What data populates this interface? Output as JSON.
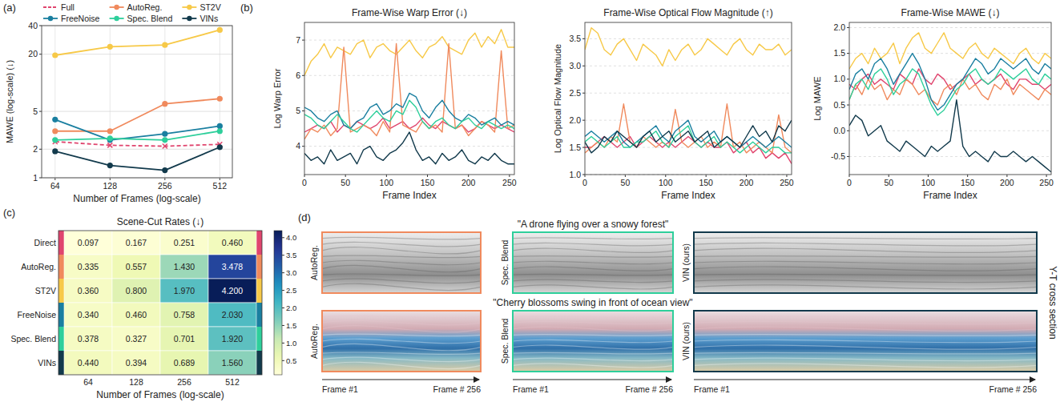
{
  "panel_labels": [
    "(a)",
    "(b)",
    "(c)",
    "(d)"
  ],
  "chart_data": [
    {
      "type": "line",
      "log": true,
      "grid": true,
      "legend": "top",
      "x_label": "Number of Frames (log-scale)",
      "y_label": "MAWE (log-scale) (↓)",
      "x": [
        64,
        128,
        256,
        512
      ],
      "xlim": [
        54,
        600
      ],
      "xticks": [
        64,
        128,
        256,
        512
      ],
      "ylim": [
        1,
        40
      ],
      "yticks": [
        1,
        2,
        5,
        20,
        40
      ],
      "series": [
        {
          "name": "Full",
          "color": "#e0456e",
          "marker": "x",
          "line_style": "dashed",
          "values": [
            2.4,
            2.2,
            2.15,
            2.25
          ]
        },
        {
          "name": "AutoReg.",
          "color": "#f08a5d",
          "marker": "circle",
          "line_style": "solid",
          "values": [
            3.1,
            3.1,
            6.0,
            6.8
          ]
        },
        {
          "name": "ST2V",
          "color": "#f7c948",
          "marker": "circle",
          "line_style": "solid",
          "values": [
            19.5,
            24,
            25,
            36
          ]
        },
        {
          "name": "FreeNoise",
          "color": "#1a7fa0",
          "marker": "circle",
          "line_style": "solid",
          "values": [
            4.1,
            2.5,
            2.9,
            3.5
          ]
        },
        {
          "name": "Spec. Blend",
          "color": "#2ecf9b",
          "marker": "circle",
          "line_style": "solid",
          "values": [
            2.5,
            2.6,
            2.5,
            3.1
          ]
        },
        {
          "name": "VINs",
          "color": "#123a4c",
          "marker": "circle",
          "line_style": "solid",
          "values": [
            1.9,
            1.35,
            1.2,
            2.1
          ]
        }
      ]
    },
    {
      "type": "line",
      "grid": "y",
      "title": "Frame-Wise Warp Error (↓)",
      "x_label": "Frame Index",
      "y_label": "Log Warp Error",
      "x": [
        0,
        8,
        16,
        24,
        32,
        40,
        48,
        56,
        64,
        72,
        80,
        88,
        96,
        104,
        112,
        120,
        128,
        136,
        144,
        152,
        160,
        168,
        176,
        184,
        192,
        200,
        208,
        216,
        224,
        232,
        240,
        248,
        256
      ],
      "xlim": [
        0,
        256
      ],
      "xticks": [
        0,
        50,
        100,
        150,
        200,
        250
      ],
      "ylim": [
        3.2,
        7.5
      ],
      "yticks": [
        4,
        5,
        6,
        7
      ],
      "series": [
        {
          "color": "#f7c948",
          "values": [
            6.0,
            6.4,
            6.6,
            6.9,
            6.5,
            6.8,
            6.7,
            6.6,
            6.9,
            7.0,
            6.5,
            6.8,
            6.9,
            6.7,
            6.6,
            6.8,
            7.0,
            6.7,
            6.5,
            6.8,
            6.9,
            7.1,
            6.8,
            6.7,
            6.6,
            7.0,
            7.2,
            6.8,
            7.1,
            6.9,
            7.3,
            6.8,
            6.8
          ]
        },
        {
          "color": "#e0456e",
          "values": [
            4.4,
            4.5,
            4.6,
            4.5,
            4.7,
            4.4,
            4.6,
            4.5,
            4.7,
            4.6,
            4.5,
            4.6,
            4.8,
            4.5,
            4.6,
            4.7,
            4.5,
            4.6,
            4.8,
            4.6,
            4.5,
            4.7,
            4.6,
            4.5,
            4.6,
            4.4,
            4.5,
            4.7,
            4.6,
            4.5,
            4.6,
            4.5,
            4.4
          ]
        },
        {
          "color": "#f08a5d",
          "values": [
            4.2,
            4.5,
            4.4,
            4.6,
            4.3,
            4.5,
            6.8,
            4.4,
            4.5,
            4.6,
            4.5,
            4.3,
            4.7,
            4.4,
            6.9,
            4.6,
            4.5,
            4.4,
            4.7,
            4.5,
            4.6,
            4.4,
            6.9,
            4.5,
            4.6,
            4.3,
            4.5,
            4.7,
            4.6,
            4.4,
            6.7,
            4.5,
            4.6
          ]
        },
        {
          "color": "#1a7fa0",
          "values": [
            5.1,
            5.0,
            4.8,
            4.7,
            4.9,
            5.0,
            4.6,
            4.5,
            4.7,
            4.8,
            5.1,
            5.2,
            4.9,
            5.0,
            5.2,
            5.1,
            5.5,
            5.4,
            5.0,
            4.8,
            5.1,
            5.3,
            5.0,
            4.8,
            4.7,
            4.9,
            4.8,
            4.6,
            4.7,
            4.8,
            4.6,
            4.7,
            4.6
          ]
        },
        {
          "color": "#2ecf9b",
          "values": [
            4.9,
            4.8,
            4.6,
            4.5,
            4.7,
            4.9,
            4.7,
            4.5,
            4.4,
            4.6,
            4.8,
            5.0,
            4.8,
            4.7,
            5.0,
            4.9,
            5.3,
            5.1,
            4.7,
            4.5,
            4.7,
            4.8,
            4.6,
            4.5,
            4.7,
            4.8,
            4.6,
            4.5,
            4.7,
            4.6,
            4.5,
            4.6,
            4.5
          ]
        },
        {
          "color": "#123a4c",
          "values": [
            3.8,
            3.6,
            3.7,
            3.5,
            3.9,
            3.6,
            3.7,
            3.8,
            3.5,
            3.9,
            4.0,
            3.7,
            3.6,
            3.8,
            3.9,
            4.1,
            4.4,
            3.9,
            3.6,
            3.7,
            3.5,
            3.8,
            3.6,
            3.7,
            3.9,
            3.6,
            3.5,
            3.7,
            3.6,
            3.8,
            3.6,
            3.5,
            3.5
          ]
        }
      ]
    },
    {
      "type": "line",
      "grid": "y",
      "title": "Frame-Wise Optical Flow Magnitude (↑)",
      "x_label": "Frame Index",
      "y_label": "Log Optical Flow Magnitude",
      "x": [
        0,
        8,
        16,
        24,
        32,
        40,
        48,
        56,
        64,
        72,
        80,
        88,
        96,
        104,
        112,
        120,
        128,
        136,
        144,
        152,
        160,
        168,
        176,
        184,
        192,
        200,
        208,
        216,
        224,
        232,
        240,
        248,
        256
      ],
      "xlim": [
        0,
        256
      ],
      "xticks": [
        0,
        50,
        100,
        150,
        200,
        250
      ],
      "ylim": [
        1.0,
        3.8
      ],
      "yticks": [
        {
          "value": 1,
          "label": "1.0"
        },
        1.5,
        {
          "value": 2,
          "label": "2.0"
        },
        2.5,
        {
          "value": 3,
          "label": "3.0"
        },
        3.5
      ],
      "series": [
        {
          "color": "#f7c948",
          "values": [
            3.3,
            3.7,
            3.6,
            3.3,
            3.2,
            3.4,
            3.5,
            3.3,
            3.1,
            3.4,
            3.3,
            3.2,
            3.0,
            3.3,
            3.1,
            3.3,
            3.4,
            3.2,
            3.3,
            3.5,
            3.4,
            3.3,
            3.2,
            3.4,
            3.5,
            3.3,
            3.2,
            3.4,
            3.3,
            3.3,
            3.4,
            3.2,
            3.3
          ]
        },
        {
          "color": "#e0456e",
          "values": [
            1.5,
            1.5,
            1.6,
            1.7,
            1.6,
            1.5,
            1.6,
            1.7,
            1.5,
            1.6,
            1.7,
            1.6,
            1.5,
            1.6,
            1.5,
            1.6,
            1.7,
            1.6,
            1.5,
            1.6,
            1.5,
            1.5,
            1.6,
            1.4,
            1.5,
            1.6,
            1.4,
            1.5,
            1.3,
            1.4,
            1.3,
            1.4,
            1.2
          ]
        },
        {
          "color": "#f08a5d",
          "values": [
            1.4,
            1.5,
            1.6,
            1.5,
            1.7,
            1.6,
            2.3,
            1.6,
            1.5,
            1.7,
            1.6,
            1.5,
            1.6,
            1.5,
            2.2,
            1.6,
            1.5,
            1.6,
            1.7,
            1.5,
            1.6,
            1.5,
            2.3,
            1.5,
            1.6,
            1.4,
            1.5,
            1.6,
            1.5,
            1.4,
            2.1,
            1.5,
            1.4
          ]
        },
        {
          "color": "#1a7fa0",
          "values": [
            1.7,
            1.8,
            1.7,
            1.6,
            1.7,
            1.8,
            1.6,
            1.5,
            1.6,
            1.7,
            1.8,
            1.9,
            1.7,
            1.6,
            1.8,
            1.9,
            2.0,
            1.7,
            1.6,
            1.7,
            1.8,
            1.6,
            1.7,
            1.6,
            1.5,
            1.6,
            1.7,
            1.6,
            1.5,
            1.6,
            1.7,
            1.6,
            1.5
          ]
        },
        {
          "color": "#2ecf9b",
          "values": [
            1.6,
            1.7,
            1.6,
            1.5,
            1.6,
            1.7,
            1.5,
            1.5,
            1.6,
            1.6,
            1.7,
            1.8,
            1.6,
            1.5,
            1.7,
            1.8,
            1.9,
            1.6,
            1.5,
            1.6,
            1.7,
            1.5,
            1.6,
            1.5,
            1.4,
            1.5,
            1.6,
            1.5,
            1.4,
            1.5,
            1.5,
            1.4,
            1.4
          ]
        },
        {
          "color": "#123a4c",
          "values": [
            1.6,
            1.4,
            1.5,
            1.7,
            1.6,
            1.8,
            1.7,
            1.6,
            1.5,
            1.7,
            1.8,
            1.6,
            1.7,
            1.8,
            1.6,
            1.7,
            1.8,
            1.6,
            1.7,
            1.8,
            1.5,
            1.6,
            1.7,
            1.6,
            1.5,
            1.7,
            1.9,
            1.7,
            1.8,
            1.6,
            1.9,
            1.8,
            2.0
          ]
        }
      ]
    },
    {
      "type": "line",
      "grid": "y",
      "title": "Frame-Wise MAWE (↓)",
      "x_label": "Frame Index",
      "y_label": "Log MAWE",
      "x": [
        0,
        8,
        16,
        24,
        32,
        40,
        48,
        56,
        64,
        72,
        80,
        88,
        96,
        104,
        112,
        120,
        128,
        136,
        144,
        152,
        160,
        168,
        176,
        184,
        192,
        200,
        208,
        216,
        224,
        232,
        240,
        248,
        256
      ],
      "xlim": [
        0,
        256
      ],
      "xticks": [
        0,
        50,
        100,
        150,
        200,
        250
      ],
      "ylim": [
        -0.85,
        2.1
      ],
      "yticks": [
        -0.5,
        {
          "value": 0,
          "label": "0.0"
        },
        0.5,
        {
          "value": 1,
          "label": "1.0"
        },
        1.5,
        {
          "value": 2,
          "label": "2.0"
        }
      ],
      "series": [
        {
          "color": "#f7c948",
          "values": [
            1.2,
            1.4,
            1.5,
            1.3,
            1.6,
            1.4,
            1.5,
            1.7,
            1.3,
            1.6,
            1.8,
            1.9,
            1.6,
            1.5,
            1.7,
            1.9,
            1.6,
            1.5,
            1.4,
            1.6,
            1.7,
            1.5,
            1.4,
            1.6,
            1.5,
            1.4,
            1.3,
            1.5,
            1.6,
            1.4,
            1.3,
            1.5,
            1.4
          ]
        },
        {
          "color": "#e0456e",
          "values": [
            0.9,
            0.8,
            1.0,
            1.1,
            0.9,
            1.0,
            0.9,
            0.8,
            1.1,
            1.0,
            0.9,
            1.2,
            1.0,
            0.9,
            1.1,
            1.0,
            0.8,
            0.9,
            1.0,
            1.1,
            0.9,
            1.0,
            0.9,
            1.0,
            1.1,
            0.9,
            0.8,
            1.0,
            1.0,
            0.9,
            0.9,
            0.8,
            0.9
          ]
        },
        {
          "color": "#f08a5d",
          "values": [
            0.6,
            0.9,
            0.7,
            1.0,
            0.8,
            0.9,
            0.6,
            0.8,
            0.7,
            1.0,
            0.9,
            0.7,
            0.8,
            0.6,
            0.5,
            0.8,
            0.9,
            0.7,
            1.0,
            0.8,
            0.9,
            0.7,
            0.6,
            0.9,
            0.8,
            1.0,
            0.7,
            0.9,
            0.8,
            0.7,
            0.6,
            0.8,
            0.7
          ]
        },
        {
          "color": "#1a7fa0",
          "values": [
            0.8,
            1.1,
            1.2,
            1.0,
            1.3,
            1.4,
            1.2,
            0.9,
            1.1,
            1.3,
            1.5,
            1.3,
            1.0,
            0.6,
            0.4,
            0.5,
            0.7,
            0.9,
            1.0,
            1.2,
            1.4,
            1.3,
            1.1,
            1.2,
            1.4,
            1.3,
            1.2,
            1.3,
            1.4,
            1.2,
            1.1,
            1.3,
            1.2
          ]
        },
        {
          "color": "#2ecf9b",
          "values": [
            0.6,
            0.9,
            1.0,
            0.8,
            1.1,
            1.2,
            1.0,
            0.7,
            0.9,
            1.0,
            1.2,
            1.1,
            0.8,
            0.5,
            0.3,
            0.4,
            0.6,
            0.8,
            0.9,
            1.1,
            1.2,
            1.0,
            0.9,
            1.0,
            1.2,
            1.1,
            1.0,
            1.1,
            1.2,
            1.0,
            0.9,
            1.1,
            1.0
          ]
        },
        {
          "color": "#123a4c",
          "values": [
            0.1,
            0.3,
            0.2,
            -0.1,
            0.0,
            0.1,
            -0.2,
            -0.3,
            -0.4,
            -0.2,
            -0.3,
            -0.4,
            -0.5,
            -0.3,
            -0.4,
            -0.3,
            -0.2,
            0.6,
            -0.3,
            -0.5,
            -0.4,
            -0.5,
            -0.6,
            -0.4,
            -0.5,
            -0.5,
            -0.4,
            -0.5,
            -0.6,
            -0.5,
            -0.6,
            -0.7,
            -0.8
          ]
        }
      ]
    },
    {
      "type": "heatmap",
      "title": "Scene-Cut Rates (↓)",
      "x_label": "Number of Frames (log-scale)",
      "rows": [
        "Direct",
        "AutoReg.",
        "ST2V",
        "FreeNoise",
        "Spec. Blend",
        "VINs"
      ],
      "columns": [
        64,
        128,
        256,
        512
      ],
      "colors": [
        "#e0456e",
        "#f08a5d",
        "#f7c948",
        "#1a7fa0",
        "#2ecf9b",
        "#123a4c"
      ],
      "values": [
        [
          0.097,
          0.167,
          0.251,
          0.46
        ],
        [
          0.335,
          0.557,
          1.43,
          3.478
        ],
        [
          0.36,
          0.8,
          1.97,
          4.2
        ],
        [
          0.34,
          0.46,
          0.758,
          2.03
        ],
        [
          0.378,
          0.327,
          0.701,
          1.92
        ],
        [
          0.44,
          0.394,
          0.689,
          1.56
        ]
      ],
      "value_labels": [
        [
          "0.097",
          "0.167",
          "0.251",
          "0.460"
        ],
        [
          "0.335",
          "0.557",
          "1.430",
          "3.478"
        ],
        [
          "0.360",
          "0.800",
          "1.970",
          "4.200"
        ],
        [
          "0.340",
          "0.460",
          "0.758",
          "2.030"
        ],
        [
          "0.378",
          "0.327",
          "0.701",
          "1.920"
        ],
        [
          "0.440",
          "0.394",
          "0.689",
          "1.560"
        ]
      ],
      "colorbar": {
        "range": [
          0.097,
          4.2
        ],
        "ticks": [
          0.5,
          {
            "value": 1,
            "label": "1.0"
          },
          1.5,
          {
            "value": 2,
            "label": "2.0"
          },
          2.5,
          {
            "value": 3,
            "label": "3.0"
          },
          3.5,
          {
            "value": 4,
            "label": "4.0"
          }
        ]
      }
    }
  ],
  "image_panel": {
    "prompts": [
      "\"A drone flying over a snowy forest\"",
      "\"Cherry blossoms swing in front of ocean view\""
    ],
    "methods": [
      "AutoReg.",
      "Spec. Blend",
      "VIN (ours)"
    ],
    "start_label": "Frame #1",
    "end_label": "Frame # 256",
    "side_label": "Y-T cross section"
  }
}
